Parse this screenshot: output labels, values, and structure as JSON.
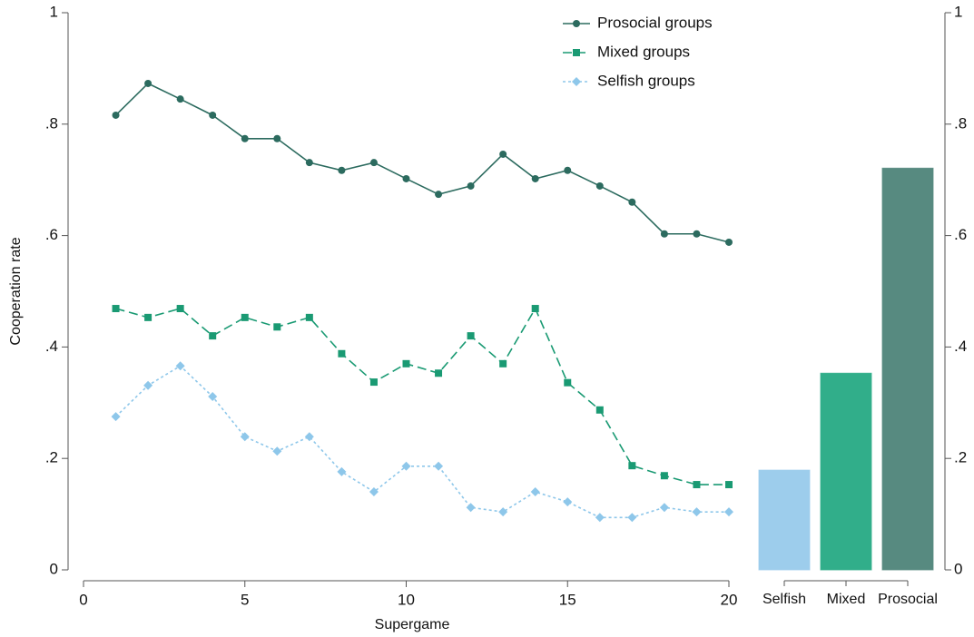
{
  "chart_data": [
    {
      "type": "line",
      "x_label": "Supergame",
      "y_label": "Cooperation rate",
      "x": [
        1,
        2,
        3,
        4,
        5,
        6,
        7,
        8,
        9,
        10,
        11,
        12,
        13,
        14,
        15,
        16,
        17,
        18,
        19,
        20
      ],
      "xlim": [
        0,
        20
      ],
      "xticks": [
        0,
        5,
        10,
        15,
        20
      ],
      "ylim": [
        0,
        1
      ],
      "yticks": [
        0,
        {
          "value": 0.2,
          "label": ".2"
        },
        {
          "value": 0.4,
          "label": ".4"
        },
        {
          "value": 0.6,
          "label": ".6"
        },
        {
          "value": 0.8,
          "label": ".8"
        },
        1
      ],
      "legend": "top",
      "series": [
        {
          "name": "Prosocial groups",
          "color": "#2c6b5f",
          "marker": "circle",
          "dash": "solid",
          "values": [
            0.816,
            0.873,
            0.845,
            0.816,
            0.774,
            0.774,
            0.731,
            0.717,
            0.731,
            0.702,
            0.674,
            0.689,
            0.746,
            0.702,
            0.717,
            0.689,
            0.66,
            0.603,
            0.603,
            0.588
          ]
        },
        {
          "name": "Mixed groups",
          "color": "#1a9a73",
          "marker": "square",
          "dash": "long",
          "values": [
            0.469,
            0.453,
            0.469,
            0.42,
            0.453,
            0.436,
            0.453,
            0.388,
            0.337,
            0.37,
            0.353,
            0.42,
            0.37,
            0.469,
            0.336,
            0.287,
            0.187,
            0.169,
            0.153,
            0.153
          ]
        },
        {
          "name": "Selfish groups",
          "color": "#8ec7ea",
          "marker": "diamond",
          "dash": "short",
          "values": [
            0.275,
            0.331,
            0.366,
            0.311,
            0.239,
            0.213,
            0.239,
            0.176,
            0.14,
            0.186,
            0.186,
            0.112,
            0.104,
            0.14,
            0.122,
            0.094,
            0.094,
            0.112,
            0.104,
            0.104
          ]
        }
      ]
    },
    {
      "type": "bar",
      "categories": [
        "Selfish",
        "Mixed",
        "Prosocial"
      ],
      "values": [
        0.179,
        0.353,
        0.721
      ],
      "colors": [
        "#9dcdec",
        "#31ae8a",
        "#578a80"
      ],
      "ylim": [
        0,
        1
      ],
      "yticks": [
        0,
        {
          "value": 0.2,
          "label": ".2"
        },
        {
          "value": 0.4,
          "label": ".4"
        },
        {
          "value": 0.6,
          "label": ".6"
        },
        {
          "value": 0.8,
          "label": ".8"
        },
        1
      ]
    }
  ]
}
